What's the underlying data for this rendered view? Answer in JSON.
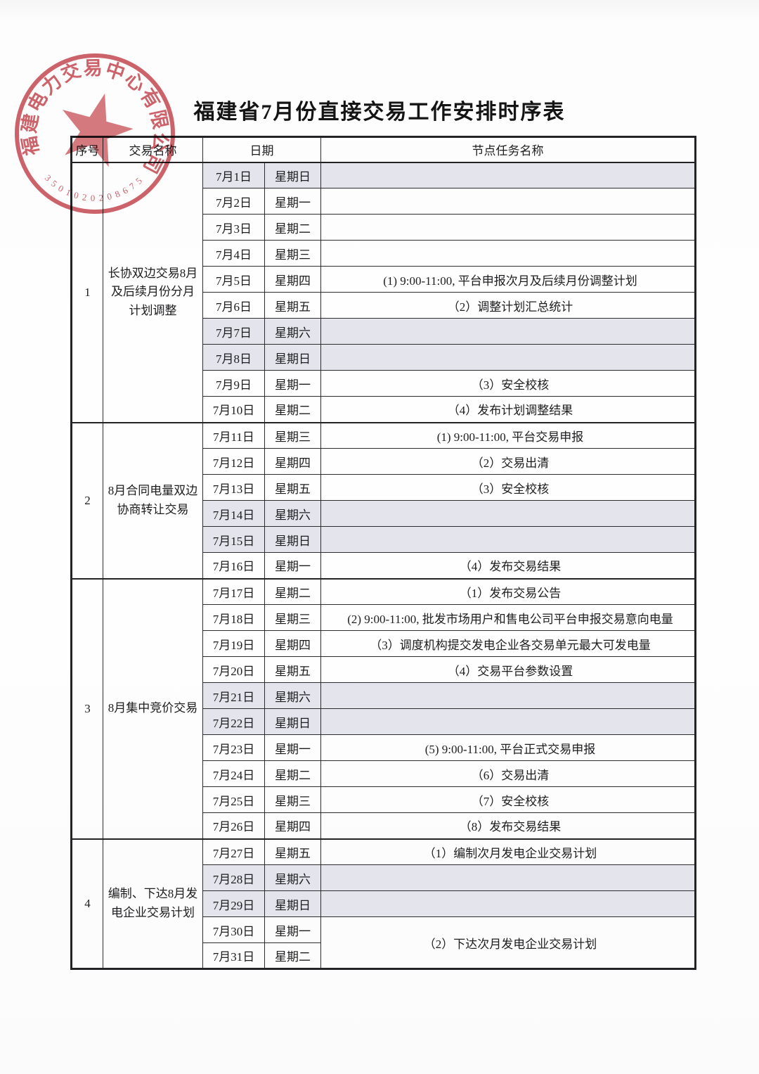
{
  "page": {
    "title": "福建省7月份直接交易工作安排时序表"
  },
  "stamp": {
    "company": "福建电力交易中心有限公司",
    "serial": "3501020208675",
    "icon": "star-icon",
    "color": "#c4434b"
  },
  "colors": {
    "weekend_shade": "#e4e4ec",
    "border_dark": "#232325",
    "seal_red": "#c4434b"
  },
  "table": {
    "headers": {
      "no": "序号",
      "name": "交易名称",
      "date": "日期",
      "task": "节点任务名称"
    },
    "sections": [
      {
        "no": "1",
        "name": "长协双边交易8月\n及后续月份分月\n计划调整",
        "rows": [
          {
            "date": "7月1日",
            "weekday": "星期日",
            "task": "",
            "weekend": true
          },
          {
            "date": "7月2日",
            "weekday": "星期一",
            "task": ""
          },
          {
            "date": "7月3日",
            "weekday": "星期二",
            "task": ""
          },
          {
            "date": "7月4日",
            "weekday": "星期三",
            "task": ""
          },
          {
            "date": "7月5日",
            "weekday": "星期四",
            "task": "(1) 9:00-11:00, 平台申报次月及后续月份调整计划"
          },
          {
            "date": "7月6日",
            "weekday": "星期五",
            "task": "（2）调整计划汇总统计"
          },
          {
            "date": "7月7日",
            "weekday": "星期六",
            "task": "",
            "weekend": true
          },
          {
            "date": "7月8日",
            "weekday": "星期日",
            "task": "",
            "weekend": true
          },
          {
            "date": "7月9日",
            "weekday": "星期一",
            "task": "（3）安全校核"
          },
          {
            "date": "7月10日",
            "weekday": "星期二",
            "task": "（4）发布计划调整结果"
          }
        ]
      },
      {
        "no": "2",
        "name": "8月合同电量双边\n协商转让交易",
        "rows": [
          {
            "date": "7月11日",
            "weekday": "星期三",
            "task": "(1) 9:00-11:00, 平台交易申报"
          },
          {
            "date": "7月12日",
            "weekday": "星期四",
            "task": "（2）交易出清"
          },
          {
            "date": "7月13日",
            "weekday": "星期五",
            "task": "（3）安全校核"
          },
          {
            "date": "7月14日",
            "weekday": "星期六",
            "task": "",
            "weekend": true
          },
          {
            "date": "7月15日",
            "weekday": "星期日",
            "task": "",
            "weekend": true
          },
          {
            "date": "7月16日",
            "weekday": "星期一",
            "task": "（4）发布交易结果"
          }
        ]
      },
      {
        "no": "3",
        "name": "8月集中竞价交易",
        "rows": [
          {
            "date": "7月17日",
            "weekday": "星期二",
            "task": "（1）发布交易公告"
          },
          {
            "date": "7月18日",
            "weekday": "星期三",
            "task": "(2) 9:00-11:00, 批发市场用户和售电公司平台申报交易意向电量"
          },
          {
            "date": "7月19日",
            "weekday": "星期四",
            "task": "（3）调度机构提交发电企业各交易单元最大可发电量"
          },
          {
            "date": "7月20日",
            "weekday": "星期五",
            "task": "（4）交易平台参数设置"
          },
          {
            "date": "7月21日",
            "weekday": "星期六",
            "task": "",
            "weekend": true
          },
          {
            "date": "7月22日",
            "weekday": "星期日",
            "task": "",
            "weekend": true
          },
          {
            "date": "7月23日",
            "weekday": "星期一",
            "task": "(5) 9:00-11:00, 平台正式交易申报"
          },
          {
            "date": "7月24日",
            "weekday": "星期二",
            "task": "（6）交易出清"
          },
          {
            "date": "7月25日",
            "weekday": "星期三",
            "task": "（7）安全校核"
          },
          {
            "date": "7月26日",
            "weekday": "星期四",
            "task": "（8）发布交易结果"
          }
        ]
      },
      {
        "no": "4",
        "name": "编制、下达8月发\n电企业交易计划",
        "rows": [
          {
            "date": "7月27日",
            "weekday": "星期五",
            "task": "（1）编制次月发电企业交易计划"
          },
          {
            "date": "7月28日",
            "weekday": "星期六",
            "task": "",
            "weekend": true
          },
          {
            "date": "7月29日",
            "weekday": "星期日",
            "task": "",
            "weekend": true
          },
          {
            "date": "7月30日",
            "weekday": "星期一",
            "task": "（2）下达次月发电企业交易计划",
            "task_rowspan": 2
          },
          {
            "date": "7月31日",
            "weekday": "星期二",
            "task_merged": true
          }
        ]
      }
    ]
  }
}
